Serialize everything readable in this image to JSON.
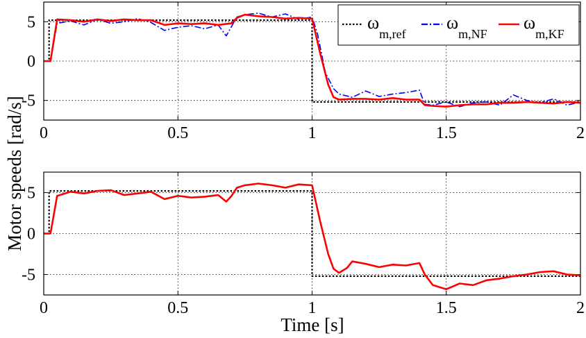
{
  "chart_data": [
    {
      "type": "line",
      "panel": "top",
      "xlim": [
        0,
        2
      ],
      "ylim": [
        -7.5,
        7.5
      ],
      "xticks": [
        0,
        0.5,
        1,
        1.5,
        2
      ],
      "xtick_labels": [
        "0",
        "0.5",
        "1",
        "1.5",
        "2"
      ],
      "yticks": [
        5,
        0,
        -5
      ],
      "ytick_labels": [
        "5",
        "0",
        "-5"
      ],
      "grid": true,
      "legend": {
        "placement": "top-right",
        "entries": [
          {
            "symbol": "ω",
            "sub": "m,ref",
            "series": "ref"
          },
          {
            "symbol": "ω",
            "sub": "m,NF",
            "series": "nf"
          },
          {
            "symbol": "ω",
            "sub": "m,KF",
            "series": "kf"
          }
        ]
      },
      "series": [
        {
          "name": "ω_m,ref",
          "id": "ref",
          "color": "#000000",
          "style": "dotted",
          "x": [
            0,
            0.02,
            0.02,
            1.0,
            1.0,
            2.0
          ],
          "y": [
            0,
            0,
            5.2,
            5.2,
            -5.2,
            -5.2
          ]
        },
        {
          "name": "ω_m,NF",
          "id": "nf",
          "color": "#0000ff",
          "style": "dashdot",
          "x": [
            0,
            0.025,
            0.05,
            0.1,
            0.15,
            0.2,
            0.25,
            0.3,
            0.35,
            0.4,
            0.45,
            0.5,
            0.55,
            0.6,
            0.65,
            0.68,
            0.7,
            0.72,
            0.75,
            0.8,
            0.85,
            0.9,
            0.95,
            1.0,
            1.02,
            1.05,
            1.08,
            1.1,
            1.15,
            1.2,
            1.25,
            1.3,
            1.35,
            1.4,
            1.42,
            1.45,
            1.5,
            1.55,
            1.6,
            1.65,
            1.7,
            1.75,
            1.8,
            1.85,
            1.9,
            1.95,
            2.0
          ],
          "y": [
            0,
            0,
            4.8,
            5.1,
            4.6,
            5.3,
            4.8,
            5.0,
            5.4,
            4.9,
            3.9,
            4.3,
            4.5,
            4.1,
            4.6,
            3.2,
            4.4,
            5.6,
            5.9,
            6.1,
            5.6,
            6.0,
            5.3,
            5.6,
            3.5,
            -1.5,
            -3.5,
            -4.2,
            -4.6,
            -3.8,
            -4.5,
            -4.2,
            -4.0,
            -3.7,
            -5.5,
            -5.6,
            -5.2,
            -5.8,
            -5.3,
            -5.2,
            -5.6,
            -4.3,
            -5.0,
            -5.3,
            -4.8,
            -5.6,
            -5.2
          ]
        },
        {
          "name": "ω_m,KF",
          "id": "kf",
          "color": "#ff0000",
          "style": "solid",
          "x": [
            0,
            0.025,
            0.05,
            0.1,
            0.15,
            0.2,
            0.25,
            0.3,
            0.35,
            0.4,
            0.45,
            0.5,
            0.55,
            0.6,
            0.65,
            0.7,
            0.72,
            0.75,
            0.8,
            0.85,
            0.9,
            0.95,
            1.0,
            1.03,
            1.06,
            1.08,
            1.1,
            1.15,
            1.2,
            1.25,
            1.3,
            1.35,
            1.4,
            1.42,
            1.45,
            1.5,
            1.55,
            1.6,
            1.65,
            1.7,
            1.75,
            1.8,
            1.85,
            1.9,
            1.95,
            2.0
          ],
          "y": [
            0,
            0,
            5.3,
            5.2,
            5.0,
            5.3,
            5.1,
            5.3,
            5.2,
            5.2,
            4.6,
            4.8,
            4.7,
            4.8,
            4.6,
            4.8,
            5.5,
            5.9,
            5.7,
            5.6,
            5.4,
            5.5,
            5.4,
            1.0,
            -3.0,
            -4.6,
            -4.9,
            -4.8,
            -4.8,
            -4.9,
            -4.7,
            -4.9,
            -4.9,
            -5.6,
            -5.7,
            -5.8,
            -5.6,
            -5.5,
            -5.5,
            -5.3,
            -5.3,
            -5.2,
            -5.3,
            -5.4,
            -5.2,
            -5.3
          ]
        }
      ]
    },
    {
      "type": "line",
      "panel": "bottom",
      "xlim": [
        0,
        2
      ],
      "ylim": [
        -7.5,
        7.5
      ],
      "xticks": [
        0,
        0.5,
        1,
        1.5,
        2
      ],
      "xtick_labels": [
        "0",
        "0.5",
        "1",
        "1.5",
        "2"
      ],
      "yticks": [
        5,
        0,
        -5
      ],
      "ytick_labels": [
        "5",
        "0",
        "-5"
      ],
      "grid": true,
      "series": [
        {
          "name": "ω_m,ref",
          "id": "ref",
          "color": "#000000",
          "style": "dotted",
          "x": [
            0,
            0.02,
            0.02,
            1.0,
            1.0,
            2.0
          ],
          "y": [
            0,
            0,
            5.2,
            5.2,
            -5.2,
            -5.2
          ]
        },
        {
          "name": "ω_m,KF",
          "id": "kf",
          "color": "#ff0000",
          "style": "solid",
          "x": [
            0,
            0.025,
            0.05,
            0.1,
            0.15,
            0.2,
            0.25,
            0.3,
            0.35,
            0.4,
            0.45,
            0.5,
            0.55,
            0.6,
            0.65,
            0.68,
            0.7,
            0.72,
            0.75,
            0.8,
            0.85,
            0.9,
            0.95,
            1.0,
            1.03,
            1.06,
            1.08,
            1.1,
            1.13,
            1.15,
            1.2,
            1.25,
            1.3,
            1.35,
            1.4,
            1.42,
            1.45,
            1.5,
            1.55,
            1.6,
            1.65,
            1.7,
            1.75,
            1.8,
            1.85,
            1.9,
            1.95,
            2.0
          ],
          "y": [
            0,
            0,
            4.6,
            5.1,
            4.9,
            5.2,
            5.3,
            4.7,
            4.9,
            5.1,
            4.2,
            4.6,
            4.4,
            4.5,
            4.7,
            3.9,
            4.6,
            5.6,
            5.9,
            6.1,
            5.9,
            5.6,
            6.0,
            5.9,
            1.5,
            -2.5,
            -4.3,
            -4.8,
            -4.2,
            -3.4,
            -3.7,
            -4.1,
            -3.8,
            -3.9,
            -3.6,
            -5.0,
            -6.3,
            -6.8,
            -6.1,
            -6.3,
            -5.7,
            -5.5,
            -5.2,
            -5.0,
            -4.7,
            -4.6,
            -5.0,
            -5.1
          ]
        }
      ]
    }
  ],
  "ylabel": "Motor speeds [rad/s]",
  "xlabel": "Time [s]"
}
